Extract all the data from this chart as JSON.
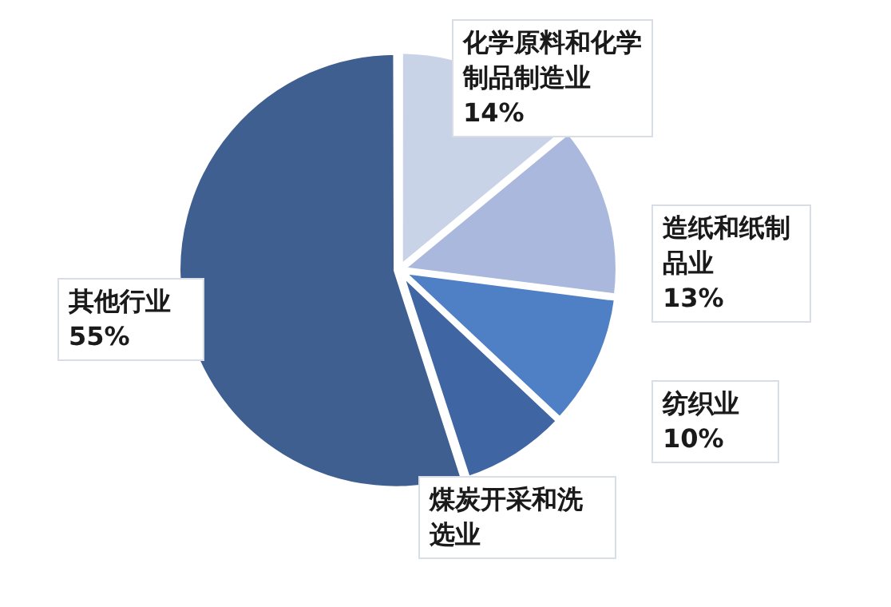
{
  "chart_data": {
    "type": "pie",
    "categories": [
      "化学原料和化学制品制造业",
      "造纸和纸制品业",
      "纺织业",
      "煤炭开采和洗选业",
      "其他行业"
    ],
    "values": [
      14,
      13,
      10,
      8,
      55
    ],
    "value_labels": [
      "14%",
      "13%",
      "10%",
      null,
      "55%"
    ],
    "colors": [
      "#c9d3e8",
      "#a9b8dc",
      "#4f7fc4",
      "#3f66a3",
      "#3e5f90"
    ],
    "legend": false
  }
}
